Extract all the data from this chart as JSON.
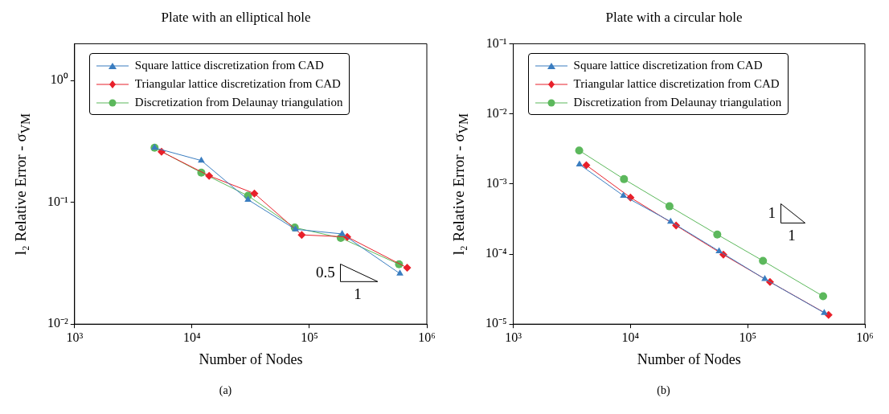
{
  "chart_data": [
    {
      "type": "line",
      "title": "Plate with an elliptical hole",
      "xlabel": "Number of Nodes",
      "ylabel": "l₂ Relative Error - σ$_{VM}$",
      "log": "xy",
      "grid": false,
      "legend": "top",
      "xlim": [
        1000,
        1000000
      ],
      "xticks": [
        {
          "value": 1000,
          "label": "10³"
        },
        {
          "value": 10000,
          "label": "10⁴"
        },
        {
          "value": 100000,
          "label": "10⁵"
        },
        {
          "value": 1000000,
          "label": "10⁶"
        }
      ],
      "ylim": [
        0.01,
        2
      ],
      "yticks": [
        {
          "value": 0.01,
          "label": "10⁻²"
        },
        {
          "value": 0.1,
          "label": "10⁻¹"
        },
        {
          "value": 1,
          "label": "10⁰"
        }
      ],
      "series": [
        {
          "name": "Square lattice discretization from CAD",
          "color": "#3a7dc0",
          "marker": "triangle",
          "x": [
            4800,
            12000,
            30000,
            76000,
            190000,
            590000
          ],
          "values": [
            0.28,
            0.22,
            0.105,
            0.06,
            0.055,
            0.026
          ]
        },
        {
          "name": "Triangular lattice discretization from CAD",
          "color": "#e8202a",
          "marker": "diamond",
          "x": [
            5500,
            14000,
            34000,
            86000,
            210000,
            680000
          ],
          "values": [
            0.26,
            0.165,
            0.118,
            0.054,
            0.052,
            0.029
          ]
        },
        {
          "name": "Discretization from Delaunay triangulation",
          "color": "#5cb85c",
          "marker": "circle",
          "x": [
            4800,
            12000,
            30000,
            75000,
            185000,
            580000
          ],
          "values": [
            0.28,
            0.175,
            0.113,
            0.062,
            0.051,
            0.031
          ]
        }
      ],
      "annotations": [
        "0.5",
        "1",
        "(a)"
      ]
    },
    {
      "type": "line",
      "title": "Plate with a circular hole",
      "xlabel": "Number of Nodes",
      "ylabel": "l₂ Relative Error - σ$_{VM}$",
      "log": "xy",
      "grid": false,
      "legend": "top",
      "xlim": [
        1000,
        1000000
      ],
      "xticks": [
        {
          "value": 1000,
          "label": "10³"
        },
        {
          "value": 10000,
          "label": "10⁴"
        },
        {
          "value": 100000,
          "label": "10⁵"
        },
        {
          "value": 1000000,
          "label": "10⁶"
        }
      ],
      "ylim": [
        1e-05,
        0.1
      ],
      "yticks": [
        {
          "value": 1e-05,
          "label": "10⁻⁵"
        },
        {
          "value": 0.0001,
          "label": "10⁻⁴"
        },
        {
          "value": 0.001,
          "label": "10⁻³"
        },
        {
          "value": 0.01,
          "label": "10⁻²"
        },
        {
          "value": 0.1,
          "label": "10⁻¹"
        }
      ],
      "series": [
        {
          "name": "Square lattice discretization from CAD",
          "color": "#3a7dc0",
          "marker": "triangle",
          "x": [
            3670,
            8700,
            22000,
            57000,
            140000,
            450000
          ],
          "values": [
            0.0019,
            0.00068,
            0.00029,
            0.00011,
            4.4e-05,
            1.45e-05
          ]
        },
        {
          "name": "Triangular lattice discretization from CAD",
          "color": "#e8202a",
          "marker": "diamond",
          "x": [
            4200,
            10000,
            24500,
            62000,
            155000,
            490000
          ],
          "values": [
            0.00185,
            0.00064,
            0.000255,
            9.8e-05,
            4e-05,
            1.35e-05
          ]
        },
        {
          "name": "Discretization from Delaunay triangulation",
          "color": "#5cb85c",
          "marker": "circle",
          "x": [
            3650,
            8800,
            21500,
            55000,
            135000,
            440000
          ],
          "values": [
            0.003,
            0.00117,
            0.00048,
            0.00019,
            8e-05,
            2.5e-05
          ]
        }
      ],
      "annotations": [
        "1",
        "1",
        "(b)"
      ]
    }
  ]
}
